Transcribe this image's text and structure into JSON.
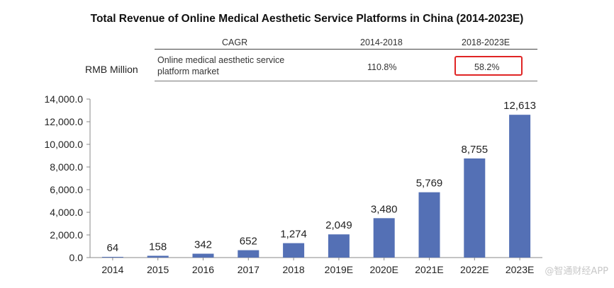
{
  "chart_data": {
    "type": "bar",
    "title": "Total Revenue of Online Medical Aesthetic Service Platforms in China (2014-2023E)",
    "ylabel": "RMB Million",
    "categories": [
      "2014",
      "2015",
      "2016",
      "2017",
      "2018",
      "2019E",
      "2020E",
      "2021E",
      "2022E",
      "2023E"
    ],
    "values": [
      64,
      158,
      342,
      652,
      1274,
      2049,
      3480,
      5769,
      8755,
      12613
    ],
    "value_labels": [
      "64",
      "158",
      "342",
      "652",
      "1,274",
      "2,049",
      "3,480",
      "5,769",
      "8,755",
      "12,613"
    ],
    "ylim": [
      0,
      14000
    ],
    "yticks": [
      0,
      2000,
      4000,
      6000,
      8000,
      10000,
      12000,
      14000
    ],
    "ytick_labels": [
      "0.0",
      "2,000.0",
      "4,000.0",
      "6,000.0",
      "8,000.0",
      "10,000.0",
      "12,000.0",
      "14,000.0"
    ],
    "bar_color": "#5470b5",
    "grid": false
  },
  "cagr_table": {
    "header": "CAGR",
    "col1": "2014-2018",
    "col2": "2018-2023E",
    "row_label_1": "Online medical aesthetic service",
    "row_label_2": "platform market",
    "val1": "110.8%",
    "val2": "58.2%"
  },
  "unit_label": "RMB Million",
  "highlight_color": "#e02525",
  "watermark": "@智通财经APP"
}
